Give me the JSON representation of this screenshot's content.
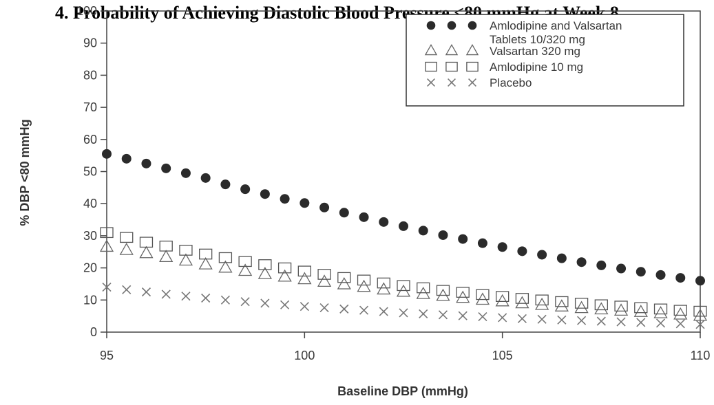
{
  "chart_data": {
    "type": "scatter",
    "title": "4. Probability of Achieving Diastolic Blood Pressure <80 mmHg at Week 8",
    "xlabel": "Baseline DBP (mmHg)",
    "ylabel": "% DBP <80 mmHg",
    "xlim": [
      95,
      110
    ],
    "ylim": [
      0,
      100
    ],
    "x_ticks": [
      95,
      100,
      105,
      110
    ],
    "y_ticks": [
      0,
      10,
      20,
      30,
      40,
      50,
      60,
      70,
      80,
      90,
      100
    ],
    "grid": false,
    "legend_position": "top-right",
    "x": [
      95,
      95.5,
      96,
      96.5,
      97,
      97.5,
      98,
      98.5,
      99,
      99.5,
      100,
      100.5,
      101,
      101.5,
      102,
      102.5,
      103,
      103.5,
      104,
      104.5,
      105,
      105.5,
      106,
      106.5,
      107,
      107.5,
      108,
      108.5,
      109,
      109.5,
      110
    ],
    "series": [
      {
        "name": "Amlodipine and Valsartan Tablets 10/320 mg",
        "marker": "filled-circle",
        "color": "#2b2b2b",
        "values": [
          55.5,
          54,
          52.5,
          51,
          49.5,
          48,
          46,
          44.5,
          43,
          41.5,
          40.2,
          38.8,
          37.2,
          35.8,
          34.3,
          33,
          31.6,
          30.2,
          29,
          27.7,
          26.5,
          25.2,
          24.1,
          23,
          21.8,
          20.8,
          19.8,
          18.8,
          17.8,
          16.9,
          16
        ]
      },
      {
        "name": "Valsartan 320 mg",
        "marker": "open-triangle",
        "color": "#666666",
        "values": [
          26.5,
          25.5,
          24.5,
          23.3,
          22.2,
          21,
          20,
          19,
          18,
          17.2,
          16.4,
          15.6,
          14.8,
          14,
          13.2,
          12.5,
          11.8,
          11.2,
          10.6,
          10,
          9.5,
          8.9,
          8.4,
          7.9,
          7.4,
          7,
          6.6,
          6.2,
          5.8,
          5.4,
          5
        ]
      },
      {
        "name": "Amlodipine 10 mg",
        "marker": "open-square",
        "color": "#555555",
        "values": [
          31,
          29.5,
          28,
          26.8,
          25.5,
          24.3,
          23.2,
          22,
          21,
          20,
          19,
          18,
          17,
          16.2,
          15.3,
          14.5,
          13.8,
          13,
          12.4,
          11.7,
          11.1,
          10.5,
          10,
          9.5,
          9,
          8.5,
          8.1,
          7.6,
          7.2,
          6.8,
          6.5
        ]
      },
      {
        "name": "Placebo",
        "marker": "x",
        "color": "#777777",
        "values": [
          14,
          13.2,
          12.5,
          11.8,
          11.2,
          10.6,
          10,
          9.5,
          9,
          8.5,
          8,
          7.6,
          7.2,
          6.8,
          6.4,
          6,
          5.7,
          5.4,
          5.1,
          4.8,
          4.5,
          4.2,
          4,
          3.8,
          3.6,
          3.4,
          3.2,
          3,
          2.8,
          2.6,
          2.4
        ]
      }
    ],
    "legend": [
      {
        "marker": "filled-circle",
        "lines": [
          "Amlodipine and Valsartan",
          "Tablets 10/320 mg"
        ]
      },
      {
        "marker": "open-triangle",
        "lines": [
          "Valsartan 320 mg"
        ]
      },
      {
        "marker": "open-square",
        "lines": [
          "Amlodipine 10 mg"
        ]
      },
      {
        "marker": "x",
        "lines": [
          "Placebo"
        ]
      }
    ]
  }
}
